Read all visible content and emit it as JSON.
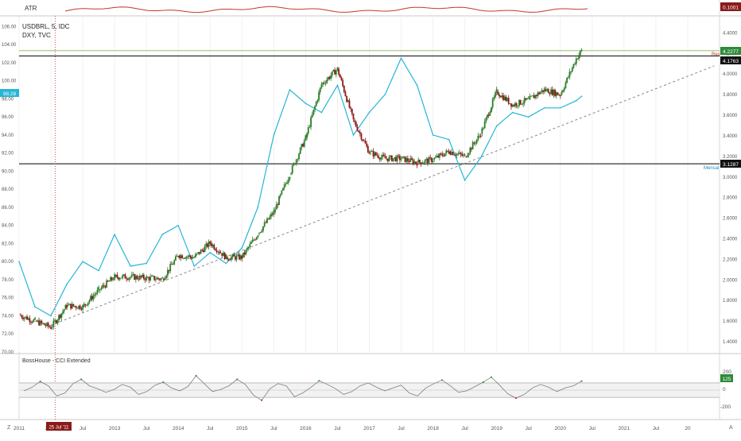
{
  "colors": {
    "usdbrl_up": "#2a7d2a",
    "usdbrl_down": "#8b1a1a",
    "dxy": "#26b5d6",
    "atr": "#c0392b",
    "cci": "#7f7f7f",
    "cci_high": "#3a9a3a",
    "cci_low": "#d0303a",
    "res_line": "#9bbf6a",
    "hline": "#000000",
    "trendline": "#888888",
    "vline": "#e04040",
    "badge_dark": "#111111",
    "badge_green": "#2e8b3a"
  },
  "atr_panel": {
    "title": "ATR",
    "value_badge": "0.1001"
  },
  "main_panel": {
    "title": "USDBRL, 5, IDC",
    "compare_title": "DXY, TVC",
    "left_axis_ticks": [
      "106.00",
      "104.00",
      "102.00",
      "100.00",
      "98.00",
      "96.00",
      "94.00",
      "92.00",
      "90.00",
      "88.00",
      "86.00",
      "84.00",
      "82.00",
      "80.00",
      "78.00",
      "76.00",
      "74.00",
      "72.00",
      "70.00"
    ],
    "right_axis_ticks": [
      "4.4000",
      "4.2000",
      "4.0000",
      "3.8000",
      "3.6000",
      "3.4000",
      "3.2000",
      "3.0000",
      "2.8000",
      "2.6000",
      "2.4000",
      "2.2000",
      "2.0000",
      "1.8000",
      "1.6000",
      "1.4000"
    ],
    "dxy_badge": "98.28",
    "price_badge_top": "4.2277",
    "price_badge_res": "4.1763",
    "price_badge_mensal": "3.1287",
    "res_label": "Res",
    "mensal_label": "Mensal"
  },
  "cci_panel": {
    "title": "BossHouse - CCI Extended",
    "ticks": [
      "200",
      "0",
      "-200"
    ],
    "value_badge": "125"
  },
  "time_axis": {
    "labels": [
      "2011",
      "2012",
      "Jul",
      "2013",
      "Jul",
      "2014",
      "Jul",
      "2015",
      "Jul",
      "2016",
      "Jul",
      "2017",
      "Jul",
      "2018",
      "Jul",
      "2019",
      "Jul",
      "2020",
      "Jul",
      "2021",
      "Jul",
      "20"
    ],
    "cursor_label": "25 Jul '11",
    "left_icon": "z-icon",
    "right_icon": "auto-scale-icon",
    "right_icon_text": "A",
    "left_icon_text": "Z"
  },
  "chart_data": {
    "type": "line",
    "title": "USDBRL, 5, IDC",
    "x_range": [
      "2011-01",
      "2021-12"
    ],
    "series": [
      {
        "name": "USDBRL, 5, IDC",
        "axis": "right",
        "ylim": [
          1.3,
          4.55
        ],
        "points": [
          [
            "2011-01",
            1.66
          ],
          [
            "2011-04",
            1.6
          ],
          [
            "2011-07",
            1.54
          ],
          [
            "2011-10",
            1.75
          ],
          [
            "2012-01",
            1.74
          ],
          [
            "2012-04",
            1.9
          ],
          [
            "2012-07",
            2.03
          ],
          [
            "2012-10",
            2.03
          ],
          [
            "2013-01",
            2.02
          ],
          [
            "2013-04",
            2.01
          ],
          [
            "2013-07",
            2.24
          ],
          [
            "2013-10",
            2.22
          ],
          [
            "2014-01",
            2.36
          ],
          [
            "2014-04",
            2.22
          ],
          [
            "2014-07",
            2.22
          ],
          [
            "2014-10",
            2.45
          ],
          [
            "2015-01",
            2.66
          ],
          [
            "2015-04",
            3.03
          ],
          [
            "2015-07",
            3.38
          ],
          [
            "2015-10",
            3.9
          ],
          [
            "2016-01",
            4.05
          ],
          [
            "2016-04",
            3.55
          ],
          [
            "2016-07",
            3.24
          ],
          [
            "2016-10",
            3.18
          ],
          [
            "2017-01",
            3.18
          ],
          [
            "2017-04",
            3.14
          ],
          [
            "2017-07",
            3.17
          ],
          [
            "2017-10",
            3.25
          ],
          [
            "2018-01",
            3.2
          ],
          [
            "2018-04",
            3.42
          ],
          [
            "2018-07",
            3.83
          ],
          [
            "2018-10",
            3.7
          ],
          [
            "2019-01",
            3.75
          ],
          [
            "2019-04",
            3.85
          ],
          [
            "2019-07",
            3.8
          ],
          [
            "2019-10",
            4.15
          ],
          [
            "2019-11",
            4.2277
          ]
        ]
      },
      {
        "name": "DXY, TVC",
        "axis": "left",
        "ylim": [
          70,
          107
        ],
        "points": [
          [
            "2011-01",
            80.0
          ],
          [
            "2011-04",
            75.0
          ],
          [
            "2011-07",
            74.0
          ],
          [
            "2011-10",
            77.5
          ],
          [
            "2012-01",
            80.0
          ],
          [
            "2012-04",
            79.0
          ],
          [
            "2012-07",
            83.0
          ],
          [
            "2012-10",
            79.5
          ],
          [
            "2013-01",
            79.8
          ],
          [
            "2013-04",
            83.0
          ],
          [
            "2013-07",
            84.0
          ],
          [
            "2013-10",
            79.5
          ],
          [
            "2014-01",
            81.0
          ],
          [
            "2014-04",
            79.8
          ],
          [
            "2014-07",
            81.5
          ],
          [
            "2014-10",
            86.0
          ],
          [
            "2015-01",
            94.0
          ],
          [
            "2015-04",
            99.0
          ],
          [
            "2015-07",
            97.5
          ],
          [
            "2015-10",
            96.5
          ],
          [
            "2016-01",
            99.5
          ],
          [
            "2016-04",
            94.0
          ],
          [
            "2016-07",
            96.5
          ],
          [
            "2016-10",
            98.5
          ],
          [
            "2017-01",
            102.5
          ],
          [
            "2017-04",
            99.5
          ],
          [
            "2017-07",
            94.0
          ],
          [
            "2017-10",
            93.5
          ],
          [
            "2018-01",
            89.0
          ],
          [
            "2018-04",
            91.5
          ],
          [
            "2018-07",
            95.0
          ],
          [
            "2018-10",
            96.5
          ],
          [
            "2019-01",
            96.0
          ],
          [
            "2019-04",
            97.0
          ],
          [
            "2019-07",
            97.0
          ],
          [
            "2019-10",
            97.8
          ],
          [
            "2019-11",
            98.28
          ]
        ]
      }
    ],
    "horizontal_lines": [
      {
        "label": "Res",
        "value": 4.1763
      },
      {
        "label": "Mensal",
        "value": 3.1287
      },
      {
        "label": "",
        "value": 4.2277
      }
    ],
    "trendline": {
      "from": [
        "2011-07",
        1.56
      ],
      "to": [
        "2021-12",
        4.08
      ]
    },
    "cursor_date": "25 Jul '11",
    "atr": {
      "title": "ATR",
      "last": 0.1001
    },
    "cci": {
      "title": "BossHouse - CCI Extended",
      "ylim": [
        -320,
        320
      ],
      "bands": [
        100,
        -100
      ],
      "last": 125,
      "values": [
        -10,
        40,
        120,
        60,
        -80,
        -40,
        90,
        150,
        60,
        20,
        -30,
        10,
        80,
        40,
        -60,
        -20,
        70,
        110,
        30,
        -10,
        50,
        200,
        90,
        -20,
        10,
        60,
        150,
        80,
        -70,
        -140,
        20,
        90,
        60,
        -90,
        -40,
        40,
        130,
        80,
        20,
        -60,
        -20,
        60,
        100,
        40,
        -10,
        30,
        70,
        -40,
        -80,
        30,
        90,
        140,
        60,
        -30,
        -10,
        50,
        110,
        180,
        70,
        -50,
        -110,
        -60,
        30,
        80,
        40,
        -20,
        30,
        60,
        125
      ]
    }
  }
}
